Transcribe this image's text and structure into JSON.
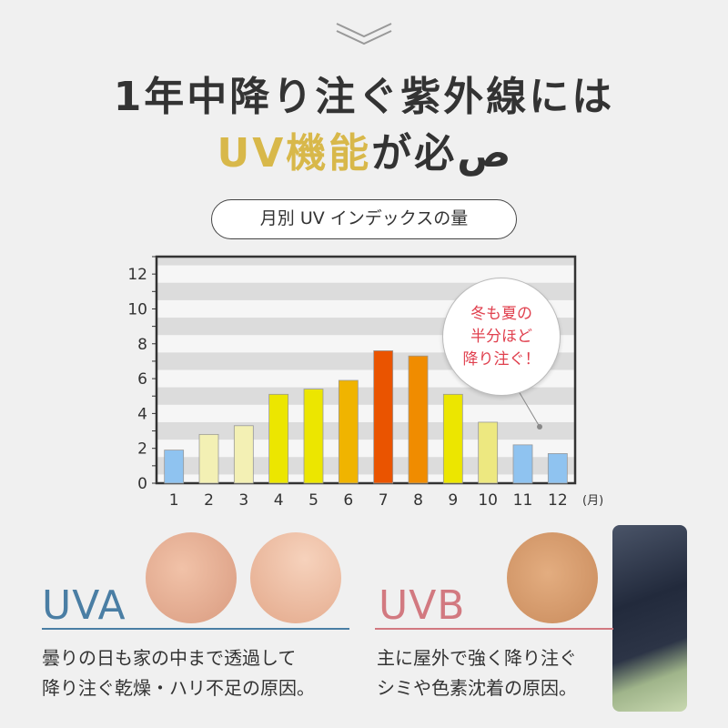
{
  "heading": {
    "line1": "1年中降り注ぐ紫外線には",
    "line2_accent": "UV機能",
    "line2_rest": "が必ص"
  },
  "chart_title": "月別 UV インデックスの量",
  "callout": {
    "lines": [
      "冬も夏の",
      "半分ほど",
      "降り注ぐ！"
    ],
    "color": "#e0404e"
  },
  "chart_data": {
    "type": "bar",
    "title": "月別 UV インデックスの量",
    "categories": [
      "1",
      "2",
      "3",
      "4",
      "5",
      "6",
      "7",
      "8",
      "9",
      "10",
      "11",
      "12"
    ],
    "values": [
      1.9,
      2.8,
      3.3,
      5.1,
      5.4,
      5.9,
      7.6,
      7.3,
      5.1,
      3.5,
      2.2,
      1.7
    ],
    "colors": [
      "#8fc3f0",
      "#f3f0b4",
      "#f3f0b4",
      "#ece600",
      "#ece600",
      "#f0b400",
      "#ea5400",
      "#f08c00",
      "#ece600",
      "#ede880",
      "#8fc3f0",
      "#8fc3f0"
    ],
    "x_unit": "(月)",
    "yticks": [
      0,
      2,
      4,
      6,
      8,
      10,
      12
    ],
    "ylim": [
      0,
      13
    ],
    "xlabel": "",
    "ylabel": "",
    "grid": "horizontal stripes"
  },
  "uva": {
    "label": "UVA",
    "color": "#4a7ea4",
    "lines": [
      "曇りの日も家の中まで透過して",
      "降り注ぐ乾燥・ハリ不足の原因。"
    ]
  },
  "uvb": {
    "label": "UVB",
    "color": "#d27980",
    "lines": [
      "主に屋外で強く降り注ぐ",
      "シミや色素沈着の原因。"
    ]
  }
}
